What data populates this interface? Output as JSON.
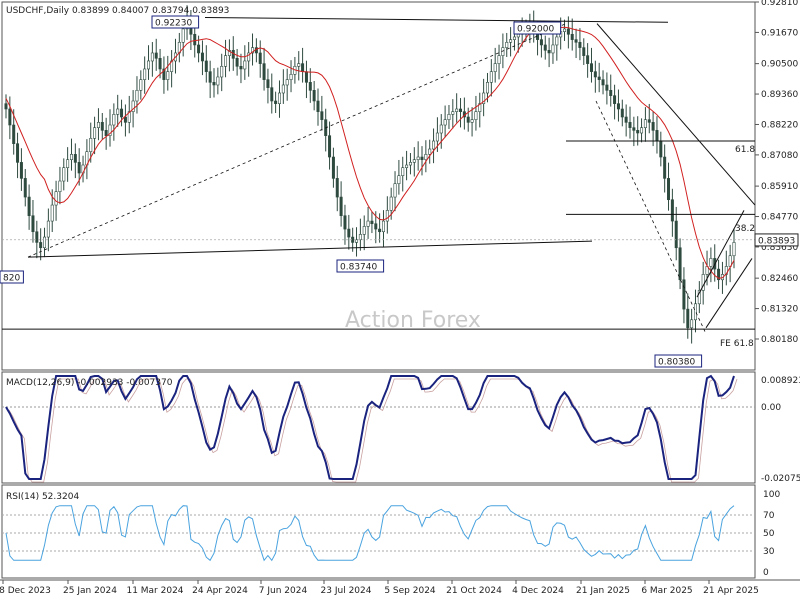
{
  "chart_data": [
    {
      "type": "candlestick",
      "symbol_line": "USDCHF,Daily",
      "ohlc_text": "0.83899 0.84007 0.83794 0.83893",
      "last_price": "0.83893",
      "price_axis": [
        "0.92810",
        "0.91670",
        "0.90500",
        "0.89360",
        "0.88220",
        "0.87080",
        "0.85910",
        "0.84770",
        "0.83630",
        "0.82460",
        "0.81320",
        "0.80180"
      ],
      "annotations": [
        "0.92230",
        "0.92000",
        "0.83740",
        "0.80380",
        "820",
        "61.8",
        "38.2",
        "FE 61.8"
      ],
      "watermark": "Action Forex",
      "series_close": [
        0.888,
        0.882,
        0.875,
        0.868,
        0.862,
        0.855,
        0.848,
        0.842,
        0.838,
        0.836,
        0.84,
        0.846,
        0.852,
        0.857,
        0.861,
        0.866,
        0.869,
        0.871,
        0.868,
        0.864,
        0.867,
        0.872,
        0.877,
        0.881,
        0.883,
        0.88,
        0.878,
        0.882,
        0.886,
        0.888,
        0.885,
        0.883,
        0.887,
        0.891,
        0.895,
        0.899,
        0.903,
        0.906,
        0.909,
        0.907,
        0.903,
        0.899,
        0.902,
        0.906,
        0.909,
        0.913,
        0.918,
        0.921,
        0.916,
        0.912,
        0.909,
        0.906,
        0.902,
        0.898,
        0.897,
        0.9,
        0.904,
        0.908,
        0.91,
        0.907,
        0.904,
        0.903,
        0.906,
        0.909,
        0.911,
        0.909,
        0.905,
        0.899,
        0.896,
        0.891,
        0.89,
        0.894,
        0.897,
        0.899,
        0.901,
        0.904,
        0.905,
        0.902,
        0.898,
        0.895,
        0.891,
        0.887,
        0.884,
        0.878,
        0.87,
        0.862,
        0.855,
        0.848,
        0.843,
        0.84,
        0.838,
        0.839,
        0.841,
        0.844,
        0.846,
        0.845,
        0.843,
        0.842,
        0.846,
        0.85,
        0.855,
        0.86,
        0.863,
        0.866,
        0.867,
        0.868,
        0.869,
        0.87,
        0.869,
        0.871,
        0.873,
        0.876,
        0.879,
        0.882,
        0.884,
        0.886,
        0.887,
        0.888,
        0.887,
        0.885,
        0.883,
        0.884,
        0.887,
        0.89,
        0.894,
        0.898,
        0.902,
        0.905,
        0.908,
        0.911,
        0.913,
        0.914,
        0.915,
        0.916,
        0.917,
        0.918,
        0.919,
        0.917,
        0.914,
        0.912,
        0.91,
        0.909,
        0.912,
        0.915,
        0.917,
        0.918,
        0.916,
        0.914,
        0.913,
        0.911,
        0.908,
        0.905,
        0.902,
        0.9,
        0.899,
        0.897,
        0.895,
        0.893,
        0.89,
        0.888,
        0.885,
        0.883,
        0.881,
        0.88,
        0.879,
        0.881,
        0.884,
        0.883,
        0.88,
        0.876,
        0.87,
        0.862,
        0.854,
        0.846,
        0.836,
        0.824,
        0.813,
        0.806,
        0.809,
        0.815,
        0.82,
        0.826,
        0.829,
        0.832,
        0.828,
        0.824,
        0.826,
        0.829,
        0.833,
        0.838
      ],
      "macd_label": "MACD(12,26,9) -0.002933 -0.007370",
      "macd_axis": [
        "0.008923",
        "0.00",
        "-0.020759"
      ],
      "rsi_label": "RSI(14) 52.3204",
      "rsi_axis": [
        "100",
        "70",
        "50",
        "30",
        "0"
      ],
      "x_ticks": [
        "8 Dec 2023",
        "25 Jan 2024",
        "11 Mar 2024",
        "24 Apr 2024",
        "7 Jun 2024",
        "23 Jul 2024",
        "5 Sep 2024",
        "21 Oct 2024",
        "4 Dec 2024",
        "21 Jan 2025",
        "6 Mar 2025",
        "21 Apr 2025"
      ]
    }
  ]
}
